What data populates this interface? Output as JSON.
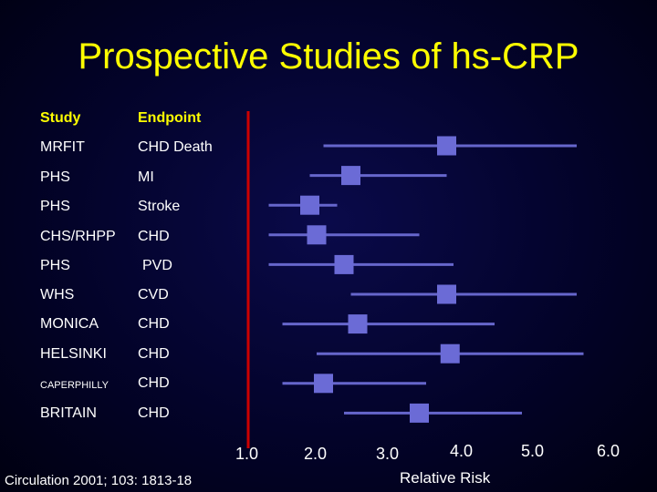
{
  "title": "Prospective Studies of hs-CRP",
  "headers": {
    "study": "Study",
    "endpoint": "Endpoint"
  },
  "studies": [
    {
      "study": "MRFIT",
      "endpoint": "CHD Death"
    },
    {
      "study": "PHS",
      "endpoint": "MI"
    },
    {
      "study": "PHS",
      "endpoint": "Stroke"
    },
    {
      "study": "CHS/RHPP",
      "endpoint": "CHD"
    },
    {
      "study": "PHS",
      "endpoint": "PVD"
    },
    {
      "study": "WHS",
      "endpoint": "CVD"
    },
    {
      "study": "MONICA",
      "endpoint": "CHD"
    },
    {
      "study": "HELSINKI",
      "endpoint": "CHD"
    },
    {
      "study": "CAPERPHILLY",
      "endpoint": "CHD"
    },
    {
      "study": "BRITAIN",
      "endpoint": "CHD"
    }
  ],
  "citation": "Circulation 2001; 103: 1813-18",
  "chart_data": {
    "type": "forest",
    "xlabel": "Relative Risk",
    "ticks": [
      "1.0",
      "2.0",
      "3.0",
      "4.0",
      "5.0",
      "6.0"
    ],
    "xlim": [
      1.0,
      6.0
    ],
    "reference_line": 1.0,
    "rows": [
      {
        "label": "MRFIT CHD Death",
        "estimate": 3.9,
        "lower": 2.1,
        "upper": 5.8
      },
      {
        "label": "PHS MI",
        "estimate": 2.5,
        "lower": 1.9,
        "upper": 3.9
      },
      {
        "label": "PHS Stroke",
        "estimate": 1.9,
        "lower": 1.3,
        "upper": 2.3
      },
      {
        "label": "CHS/RHPP CHD",
        "estimate": 2.0,
        "lower": 1.3,
        "upper": 3.5
      },
      {
        "label": "PHS PVD",
        "estimate": 2.4,
        "lower": 1.3,
        "upper": 4.0
      },
      {
        "label": "WHS CVD",
        "estimate": 3.9,
        "lower": 2.5,
        "upper": 5.8
      },
      {
        "label": "MONICA CHD",
        "estimate": 2.6,
        "lower": 1.5,
        "upper": 4.6
      },
      {
        "label": "HELSINKI CHD",
        "estimate": 3.95,
        "lower": 2.0,
        "upper": 5.9
      },
      {
        "label": "CAPERPHILLY CHD",
        "estimate": 2.1,
        "lower": 1.5,
        "upper": 3.6
      },
      {
        "label": "BRITAIN CHD",
        "estimate": 3.5,
        "lower": 2.4,
        "upper": 5.0
      }
    ]
  },
  "colors": {
    "title": "#ffff00",
    "header": "#ffff00",
    "reference_line": "#cc0000",
    "interval": "#6666cc",
    "marker": "#6b6bd6"
  }
}
